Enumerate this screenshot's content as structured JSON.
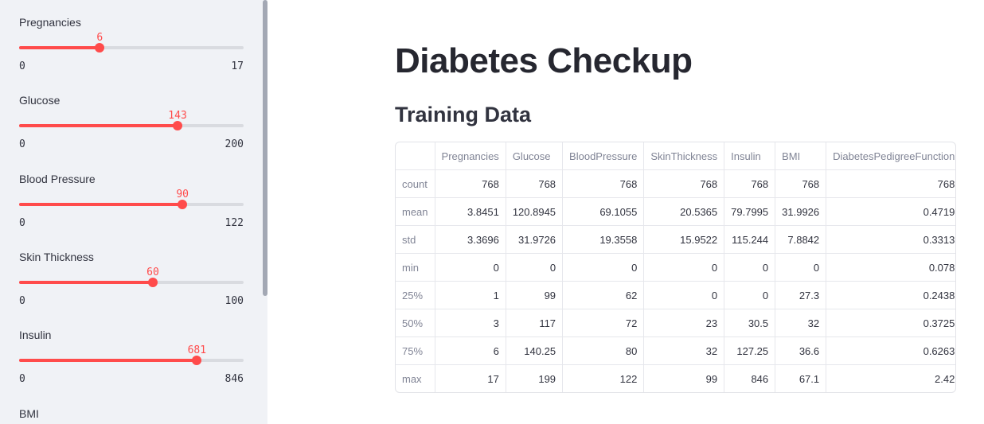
{
  "sidebar": {
    "sliders": [
      {
        "label": "Pregnancies",
        "value": 6,
        "min": 0,
        "max": 17
      },
      {
        "label": "Glucose",
        "value": 143,
        "min": 0,
        "max": 200
      },
      {
        "label": "Blood Pressure",
        "value": 90,
        "min": 0,
        "max": 122
      },
      {
        "label": "Skin Thickness",
        "value": 60,
        "min": 0,
        "max": 100
      },
      {
        "label": "Insulin",
        "value": 681,
        "min": 0,
        "max": 846
      }
    ],
    "partial_label": "BMI"
  },
  "main": {
    "title": "Diabetes Checkup",
    "subtitle": "Training Data",
    "table": {
      "columns": [
        "",
        "Pregnancies",
        "Glucose",
        "BloodPressure",
        "SkinThickness",
        "Insulin",
        "BMI",
        "DiabetesPedigreeFunction"
      ],
      "rows": [
        [
          "count",
          "768",
          "768",
          "768",
          "768",
          "768",
          "768",
          "768"
        ],
        [
          "mean",
          "3.8451",
          "120.8945",
          "69.1055",
          "20.5365",
          "79.7995",
          "31.9926",
          "0.4719"
        ],
        [
          "std",
          "3.3696",
          "31.9726",
          "19.3558",
          "15.9522",
          "115.244",
          "7.8842",
          "0.3313"
        ],
        [
          "min",
          "0",
          "0",
          "0",
          "0",
          "0",
          "0",
          "0.078"
        ],
        [
          "25%",
          "1",
          "99",
          "62",
          "0",
          "0",
          "27.3",
          "0.2438"
        ],
        [
          "50%",
          "3",
          "117",
          "72",
          "23",
          "30.5",
          "32",
          "0.3725"
        ],
        [
          "75%",
          "6",
          "140.25",
          "80",
          "32",
          "127.25",
          "36.6",
          "0.6263"
        ],
        [
          "max",
          "17",
          "199",
          "122",
          "99",
          "846",
          "67.1",
          "2.42"
        ]
      ]
    }
  }
}
